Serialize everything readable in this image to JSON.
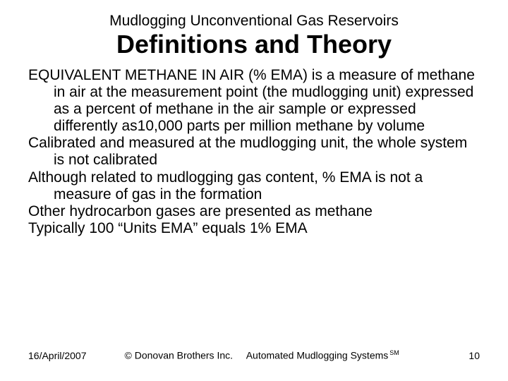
{
  "supertitle": "Mudlogging Unconventional Gas Reservoirs",
  "title": "Definitions and Theory",
  "paragraphs": [
    "EQUIVALENT METHANE IN AIR (% EMA) is a measure of methane in air at the measurement point (the mudlogging unit) expressed as a percent of methane in the air sample or expressed differently as10,000 parts per million methane by volume",
    "Calibrated and measured at the mudlogging unit, the whole system is not calibrated",
    "Although related to mudlogging gas content, % EMA is not a measure of gas in the formation",
    "Other hydrocarbon gases are presented as methane",
    "Typically 100 “Units EMA” equals 1% EMA"
  ],
  "footer": {
    "date": "16/April/2007",
    "copyright": "© Donovan Brothers Inc.",
    "product": "Automated Mudlogging Systems",
    "mark": "SM",
    "page": "10"
  }
}
